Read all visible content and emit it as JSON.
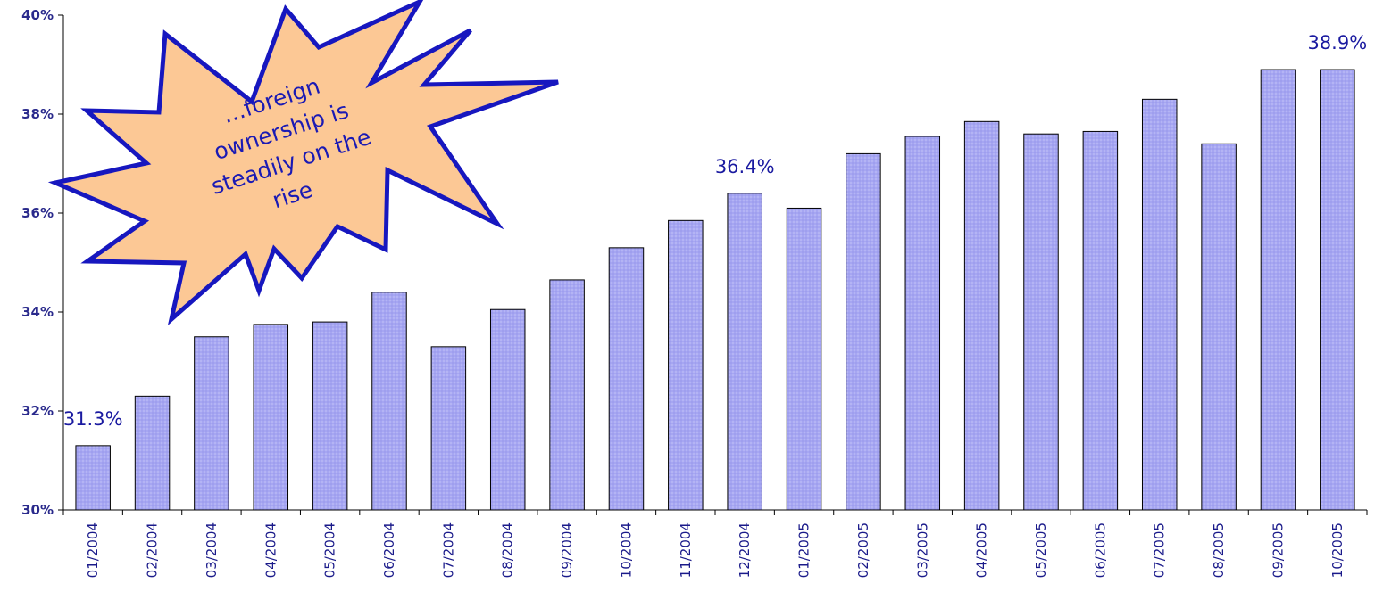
{
  "chart_data": {
    "type": "bar",
    "categories": [
      "01/2004",
      "02/2004",
      "03/2004",
      "04/2004",
      "05/2004",
      "06/2004",
      "07/2004",
      "08/2004",
      "09/2004",
      "10/2004",
      "11/2004",
      "12/2004",
      "01/2005",
      "02/2005",
      "03/2005",
      "04/2005",
      "05/2005",
      "06/2005",
      "07/2005",
      "08/2005",
      "09/2005",
      "10/2005"
    ],
    "values": [
      31.3,
      32.3,
      33.5,
      33.75,
      33.8,
      34.4,
      33.3,
      34.05,
      34.65,
      35.3,
      35.85,
      36.4,
      36.1,
      37.2,
      37.55,
      37.85,
      37.6,
      37.65,
      38.3,
      37.4,
      38.9,
      38.9
    ],
    "ylim": [
      30,
      40
    ],
    "yticks": [
      "30%",
      "32%",
      "34%",
      "36%",
      "38%",
      "40%"
    ],
    "ytick_values": [
      30,
      32,
      34,
      36,
      38,
      40
    ],
    "data_labels": [
      {
        "index": 0,
        "text": "31.3%"
      },
      {
        "index": 11,
        "text": "36.4%"
      },
      {
        "index": 21,
        "text": "38.9%"
      }
    ],
    "annotation": {
      "lines": [
        "…foreign",
        "ownership is",
        "steadily on the",
        "rise"
      ]
    },
    "bar_fill": "#a6a6f2",
    "bar_stroke": "#000000",
    "annotation_fill": "#fcc895",
    "annotation_stroke": "#1717bf",
    "label_color": "#1a1aa0",
    "grid": false
  }
}
